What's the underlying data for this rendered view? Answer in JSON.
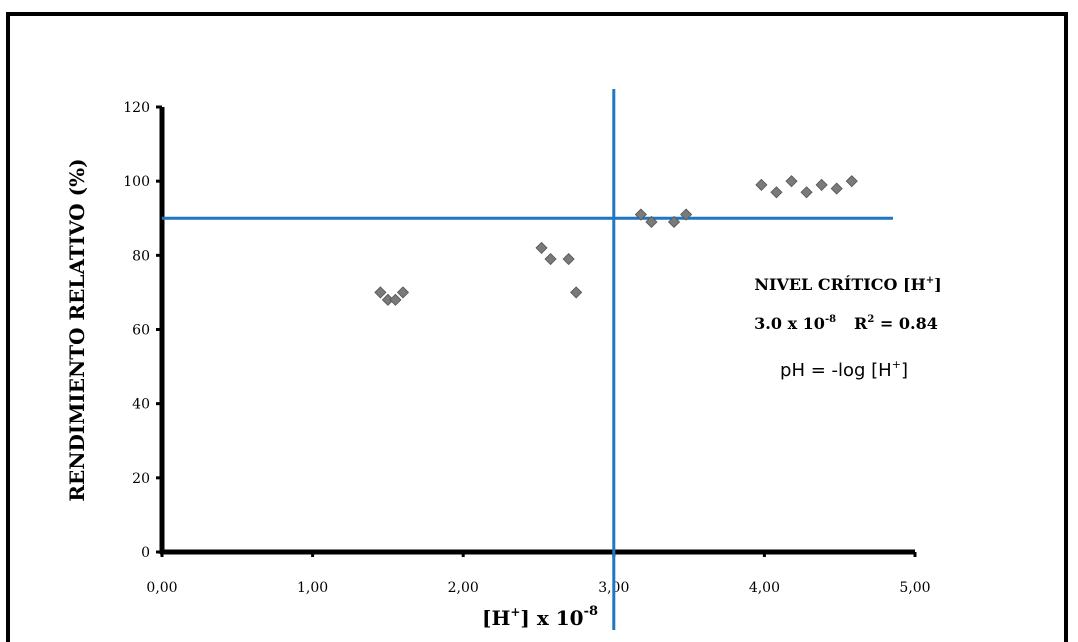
{
  "chart_data": {
    "type": "scatter",
    "title": "",
    "xlabel_main": "[H",
    "xlabel_sup": "+",
    "xlabel_tail": "] x 10",
    "xlabel_exp": "-8",
    "ylabel": "RENDIMIENTO RELATIVO (%)",
    "xlim": [
      0,
      5
    ],
    "ylim": [
      0,
      120
    ],
    "x_ticks": [
      0,
      1,
      2,
      3,
      4,
      5
    ],
    "x_tick_labels": [
      "0,00",
      "1,00",
      "2,00",
      "3,00",
      "4,00",
      "5,00"
    ],
    "y_ticks": [
      0,
      20,
      40,
      60,
      80,
      100,
      120
    ],
    "y_tick_labels": [
      "0",
      "20",
      "40",
      "60",
      "80",
      "100",
      "120"
    ],
    "points": [
      {
        "x": 1.45,
        "y": 70
      },
      {
        "x": 1.5,
        "y": 68
      },
      {
        "x": 1.55,
        "y": 68
      },
      {
        "x": 1.6,
        "y": 70
      },
      {
        "x": 2.52,
        "y": 82
      },
      {
        "x": 2.58,
        "y": 79
      },
      {
        "x": 2.7,
        "y": 79
      },
      {
        "x": 2.75,
        "y": 70
      },
      {
        "x": 3.18,
        "y": 91
      },
      {
        "x": 3.25,
        "y": 89
      },
      {
        "x": 3.4,
        "y": 89
      },
      {
        "x": 3.48,
        "y": 91
      },
      {
        "x": 3.98,
        "y": 99
      },
      {
        "x": 4.08,
        "y": 97
      },
      {
        "x": 4.18,
        "y": 100
      },
      {
        "x": 4.28,
        "y": 97
      },
      {
        "x": 4.38,
        "y": 99
      },
      {
        "x": 4.48,
        "y": 98
      },
      {
        "x": 4.58,
        "y": 100
      }
    ],
    "reference_lines": {
      "horizontal_y": 90,
      "vertical_x": 3.0,
      "color": "#1f77c4"
    },
    "grid": false,
    "marker_color": "#7a7a7a"
  },
  "annotations": {
    "line1_main": "NIVEL CRÍTICO [H",
    "line1_sup": "+",
    "line1_end": "]",
    "line2_coef": "3.0 x 10",
    "line2_exp": "-8",
    "line2_r": "R",
    "line2_r_sup": "2",
    "line2_r_val": " = 0.84",
    "line3_main": "pH = -log [H",
    "line3_sup": "+",
    "line3_end": "]"
  }
}
